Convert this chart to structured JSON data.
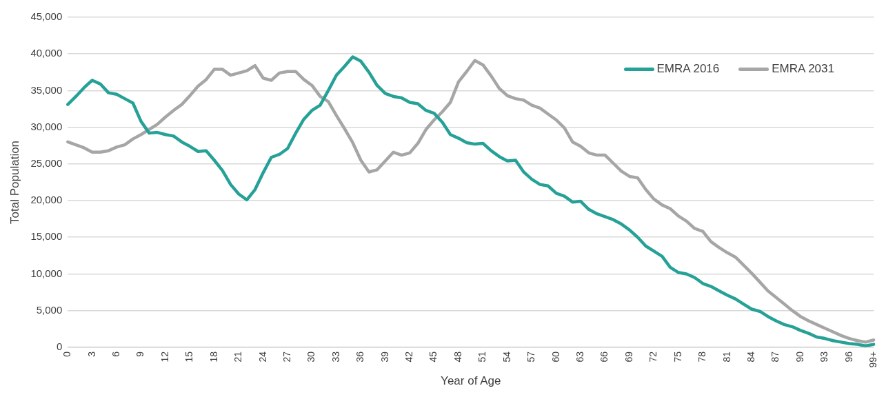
{
  "chart_data": {
    "type": "line",
    "xlabel": "Year of Age",
    "ylabel": "Total Population",
    "categories": [
      "0",
      null,
      null,
      "3",
      null,
      null,
      "6",
      null,
      null,
      "9",
      null,
      null,
      "12",
      null,
      null,
      "15",
      null,
      null,
      "18",
      null,
      null,
      "21",
      null,
      null,
      "24",
      null,
      null,
      "27",
      null,
      null,
      "30",
      null,
      null,
      "33",
      null,
      null,
      "36",
      null,
      null,
      "39",
      null,
      null,
      "42",
      null,
      null,
      "45",
      null,
      null,
      "48",
      null,
      null,
      "51",
      null,
      null,
      "54",
      null,
      null,
      "57",
      null,
      null,
      "60",
      null,
      null,
      "63",
      null,
      null,
      "66",
      null,
      null,
      "69",
      null,
      null,
      "72",
      null,
      null,
      "75",
      null,
      null,
      "78",
      null,
      null,
      "81",
      null,
      null,
      "84",
      null,
      null,
      "87",
      null,
      null,
      "90",
      null,
      null,
      "93",
      null,
      null,
      "96",
      null,
      null,
      "99+"
    ],
    "series": [
      {
        "name": "EMRA 2016",
        "color": "#26a197",
        "values": [
          33100,
          34200,
          35400,
          36400,
          35900,
          34700,
          34500,
          33900,
          33300,
          30800,
          29200,
          29300,
          29000,
          28800,
          28000,
          27400,
          26700,
          26800,
          25500,
          24100,
          22200,
          20900,
          20100,
          21500,
          23800,
          25900,
          26300,
          27100,
          29200,
          31100,
          32300,
          33000,
          35000,
          37100,
          38300,
          39600,
          39000,
          37500,
          35700,
          34600,
          34200,
          34000,
          33400,
          33200,
          32300,
          31900,
          30700,
          29000,
          28500,
          27900,
          27700,
          27800,
          26800,
          26000,
          25400,
          25500,
          23900,
          22900,
          22200,
          22000,
          21000,
          20600,
          19800,
          19900,
          18800,
          18200,
          17800,
          17400,
          16800,
          16000,
          15000,
          13800,
          13100,
          12400,
          10900,
          10200,
          10000,
          9500,
          8700,
          8300,
          7700,
          7100,
          6600,
          5900,
          5200,
          4900,
          4200,
          3600,
          3100,
          2800,
          2300,
          1900,
          1400,
          1200,
          900,
          700,
          500,
          400,
          200,
          400
        ]
      },
      {
        "name": "EMRA 2031",
        "color": "#a6a6a6",
        "values": [
          28000,
          27600,
          27200,
          26600,
          26600,
          26800,
          27300,
          27600,
          28400,
          29000,
          29700,
          30400,
          31400,
          32300,
          33100,
          34300,
          35600,
          36500,
          37900,
          37900,
          37100,
          37400,
          37700,
          38400,
          36700,
          36400,
          37400,
          37600,
          37600,
          36500,
          35700,
          34200,
          33500,
          31600,
          29800,
          27900,
          25500,
          23900,
          24200,
          25400,
          26600,
          26200,
          26500,
          27800,
          29700,
          31000,
          32100,
          33400,
          36200,
          37600,
          39100,
          38500,
          37000,
          35300,
          34300,
          33900,
          33700,
          33000,
          32600,
          31800,
          31000,
          29900,
          28000,
          27400,
          26500,
          26200,
          26200,
          25100,
          24000,
          23300,
          23100,
          21500,
          20200,
          19400,
          18900,
          17900,
          17200,
          16200,
          15800,
          14400,
          13600,
          12900,
          12300,
          11200,
          10100,
          8900,
          7700,
          6800,
          5900,
          5000,
          4200,
          3600,
          3100,
          2600,
          2100,
          1600,
          1200,
          900,
          700,
          1000
        ]
      }
    ],
    "ylim": [
      0,
      45000
    ],
    "yticks": [
      0,
      {
        "value": 5000,
        "label": "5,000"
      },
      {
        "value": 10000,
        "label": "10,000"
      },
      {
        "value": 15000,
        "label": "15,000"
      },
      {
        "value": 20000,
        "label": "20,000"
      },
      {
        "value": 25000,
        "label": "25,000"
      },
      {
        "value": 30000,
        "label": "30,000"
      },
      {
        "value": 35000,
        "label": "35,000"
      },
      {
        "value": 40000,
        "label": "40,000"
      },
      {
        "value": 45000,
        "label": "45,000"
      }
    ],
    "grid": "y",
    "legend": "top right",
    "marker": "none",
    "line_style": "solid"
  }
}
